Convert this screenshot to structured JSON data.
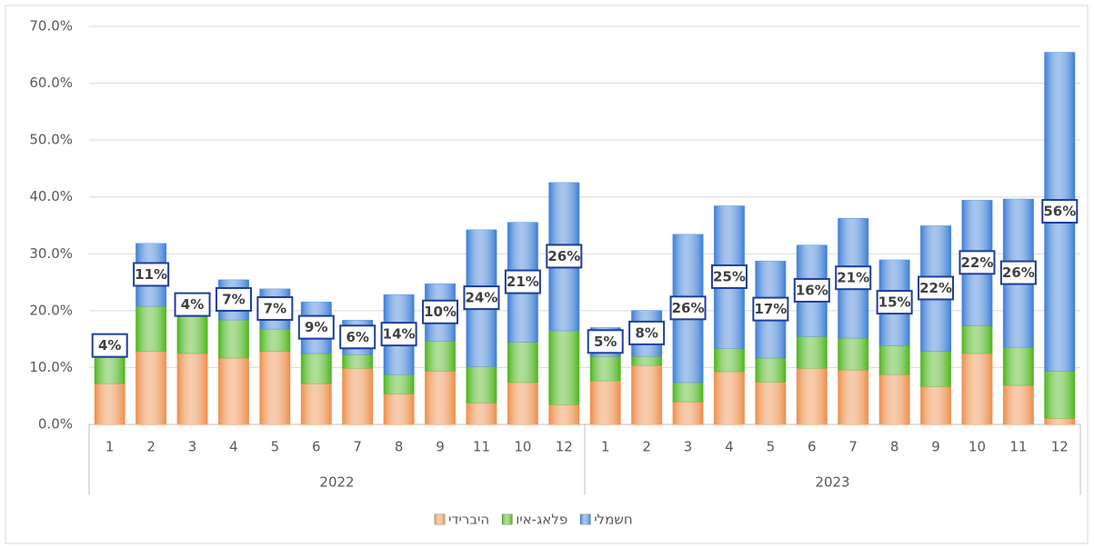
{
  "chart_data": {
    "type": "stacked_bar",
    "categories": [
      "1",
      "2",
      "3",
      "4",
      "5",
      "6",
      "7",
      "8",
      "9",
      "11",
      "10",
      "12",
      "1",
      "2",
      "3",
      "4",
      "5",
      "6",
      "7",
      "8",
      "9",
      "10",
      "11",
      "12"
    ],
    "groups": [
      "2022",
      "2023"
    ],
    "series": [
      {
        "name": "היברידי",
        "color": "#ed8f4c",
        "values": [
          7.2,
          12.9,
          12.5,
          11.7,
          12.9,
          7.2,
          9.9,
          5.4,
          9.4,
          3.8,
          7.4,
          3.5,
          7.7,
          10.4,
          4.0,
          9.3,
          7.5,
          9.9,
          9.6,
          8.8,
          6.7,
          12.5,
          6.9,
          1.1
        ]
      },
      {
        "name": "פלאג-איו",
        "color": "#4fb51f",
        "values": [
          4.6,
          7.9,
          6.5,
          6.7,
          3.9,
          5.3,
          2.4,
          3.4,
          5.3,
          6.4,
          7.1,
          13.0,
          4.3,
          1.6,
          3.4,
          4.1,
          4.2,
          5.6,
          5.6,
          5.1,
          6.2,
          4.9,
          6.7,
          8.3
        ]
      },
      {
        "name": "חשמלי",
        "color": "#3d7fd6",
        "values": [
          4,
          11,
          4,
          7,
          7,
          9,
          6,
          14,
          10,
          24,
          21,
          26,
          5,
          8,
          26,
          25,
          17,
          16,
          21,
          15,
          22,
          22,
          26,
          56
        ],
        "value_labels": [
          "4%",
          "11%",
          "4%",
          "7%",
          "7%",
          "9%",
          "6%",
          "14%",
          "10%",
          "24%",
          "21%",
          "26%",
          "5%",
          "8%",
          "26%",
          "25%",
          "17%",
          "16%",
          "21%",
          "15%",
          "22%",
          "22%",
          "26%",
          "56%"
        ]
      }
    ],
    "ylim": [
      0,
      70
    ],
    "yticks": [
      {
        "value": 0,
        "label": "0.0%"
      },
      {
        "value": 10,
        "label": "10.0%"
      },
      {
        "value": 20,
        "label": "20.0%"
      },
      {
        "value": 30,
        "label": "30.0%"
      },
      {
        "value": 40,
        "label": "40.0%"
      },
      {
        "value": 50,
        "label": "50.0%"
      },
      {
        "value": 60,
        "label": "60.0%"
      },
      {
        "value": 70,
        "label": "70.0%"
      }
    ],
    "grid": true,
    "legend": "bottom"
  }
}
